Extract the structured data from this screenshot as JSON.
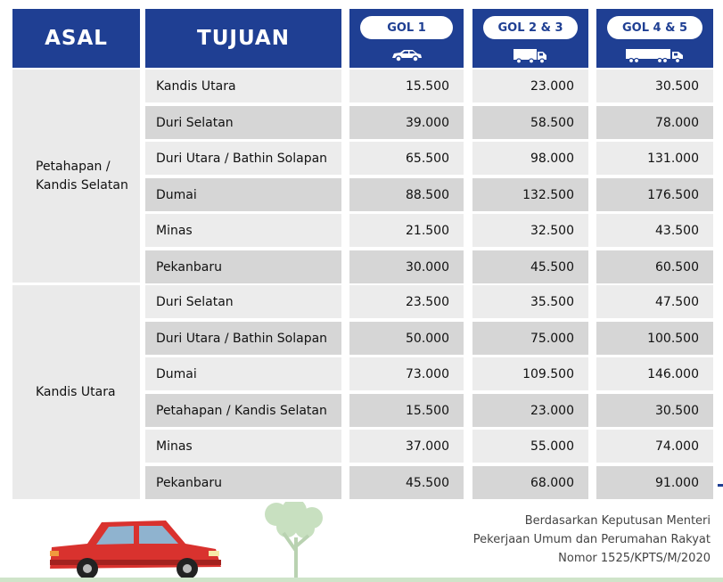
{
  "header": {
    "asal": "ASAL",
    "tujuan": "TUJUAN",
    "classes": [
      {
        "label": "GOL 1",
        "icon": "car-icon"
      },
      {
        "label": "GOL 2 & 3",
        "icon": "truck-icon"
      },
      {
        "label": "GOL 4 & 5",
        "icon": "trailer-truck-icon"
      }
    ]
  },
  "groups": [
    {
      "origin": "Petahapan / Kandis Selatan",
      "origin_lines": [
        "Petahapan /",
        "Kandis Selatan"
      ],
      "rows": [
        {
          "dest": "Kandis Utara",
          "gol1": "15.500",
          "gol23": "23.000",
          "gol45": "30.500"
        },
        {
          "dest": "Duri Selatan",
          "gol1": "39.000",
          "gol23": "58.500",
          "gol45": "78.000"
        },
        {
          "dest": "Duri Utara / Bathin Solapan",
          "gol1": "65.500",
          "gol23": "98.000",
          "gol45": "131.000"
        },
        {
          "dest": "Dumai",
          "gol1": "88.500",
          "gol23": "132.500",
          "gol45": "176.500"
        },
        {
          "dest": "Minas",
          "gol1": "21.500",
          "gol23": "32.500",
          "gol45": "43.500"
        },
        {
          "dest": "Pekanbaru",
          "gol1": "30.000",
          "gol23": "45.500",
          "gol45": "60.500"
        }
      ]
    },
    {
      "origin": "Kandis Utara",
      "origin_lines": [
        "Kandis Utara"
      ],
      "rows": [
        {
          "dest": "Duri Selatan",
          "gol1": "23.500",
          "gol23": "35.500",
          "gol45": "47.500"
        },
        {
          "dest": "Duri Utara / Bathin Solapan",
          "gol1": "50.000",
          "gol23": "75.000",
          "gol45": "100.500"
        },
        {
          "dest": "Dumai",
          "gol1": "73.000",
          "gol23": "109.500",
          "gol45": "146.000"
        },
        {
          "dest": "Petahapan / Kandis Selatan",
          "gol1": "15.500",
          "gol23": "23.000",
          "gol45": "30.500"
        },
        {
          "dest": "Minas",
          "gol1": "37.000",
          "gol23": "55.000",
          "gol45": "74.000"
        },
        {
          "dest": "Pekanbaru",
          "gol1": "45.500",
          "gol23": "68.000",
          "gol45": "91.000"
        }
      ]
    }
  ],
  "footer": {
    "lines": [
      "Berdasarkan Keputusan Menteri",
      "Pekerjaan Umum dan Perumahan Rakyat",
      "Nomor 1525/KPTS/M/2020"
    ]
  },
  "colors": {
    "header_blue": "#1f3f93",
    "row_light": "#ececec",
    "row_dark": "#d6d6d6",
    "car_red": "#d9322e"
  }
}
